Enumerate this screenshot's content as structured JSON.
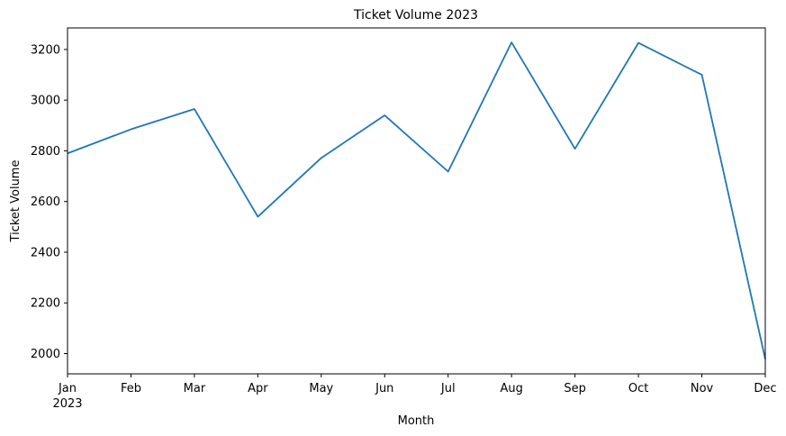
{
  "chart_data": {
    "type": "line",
    "title": "Ticket Volume 2023",
    "xlabel": "Month",
    "ylabel": "Ticket Volume",
    "x": [
      "Jan",
      "Feb",
      "Mar",
      "Apr",
      "May",
      "Jun",
      "Jul",
      "Aug",
      "Sep",
      "Oct",
      "Nov",
      "Dec"
    ],
    "x_year_label": "2023",
    "series": [
      {
        "color": "#1f77b4",
        "values": [
          2790,
          2885,
          2965,
          2540,
          2772,
          2940,
          2718,
          3228,
          2808,
          3226,
          3100,
          1978
        ]
      }
    ],
    "yticks": [
      2000,
      2200,
      2400,
      2600,
      2800,
      3000,
      3200
    ],
    "ylim": [
      1920,
      3285
    ],
    "grid": false,
    "legend": false
  }
}
